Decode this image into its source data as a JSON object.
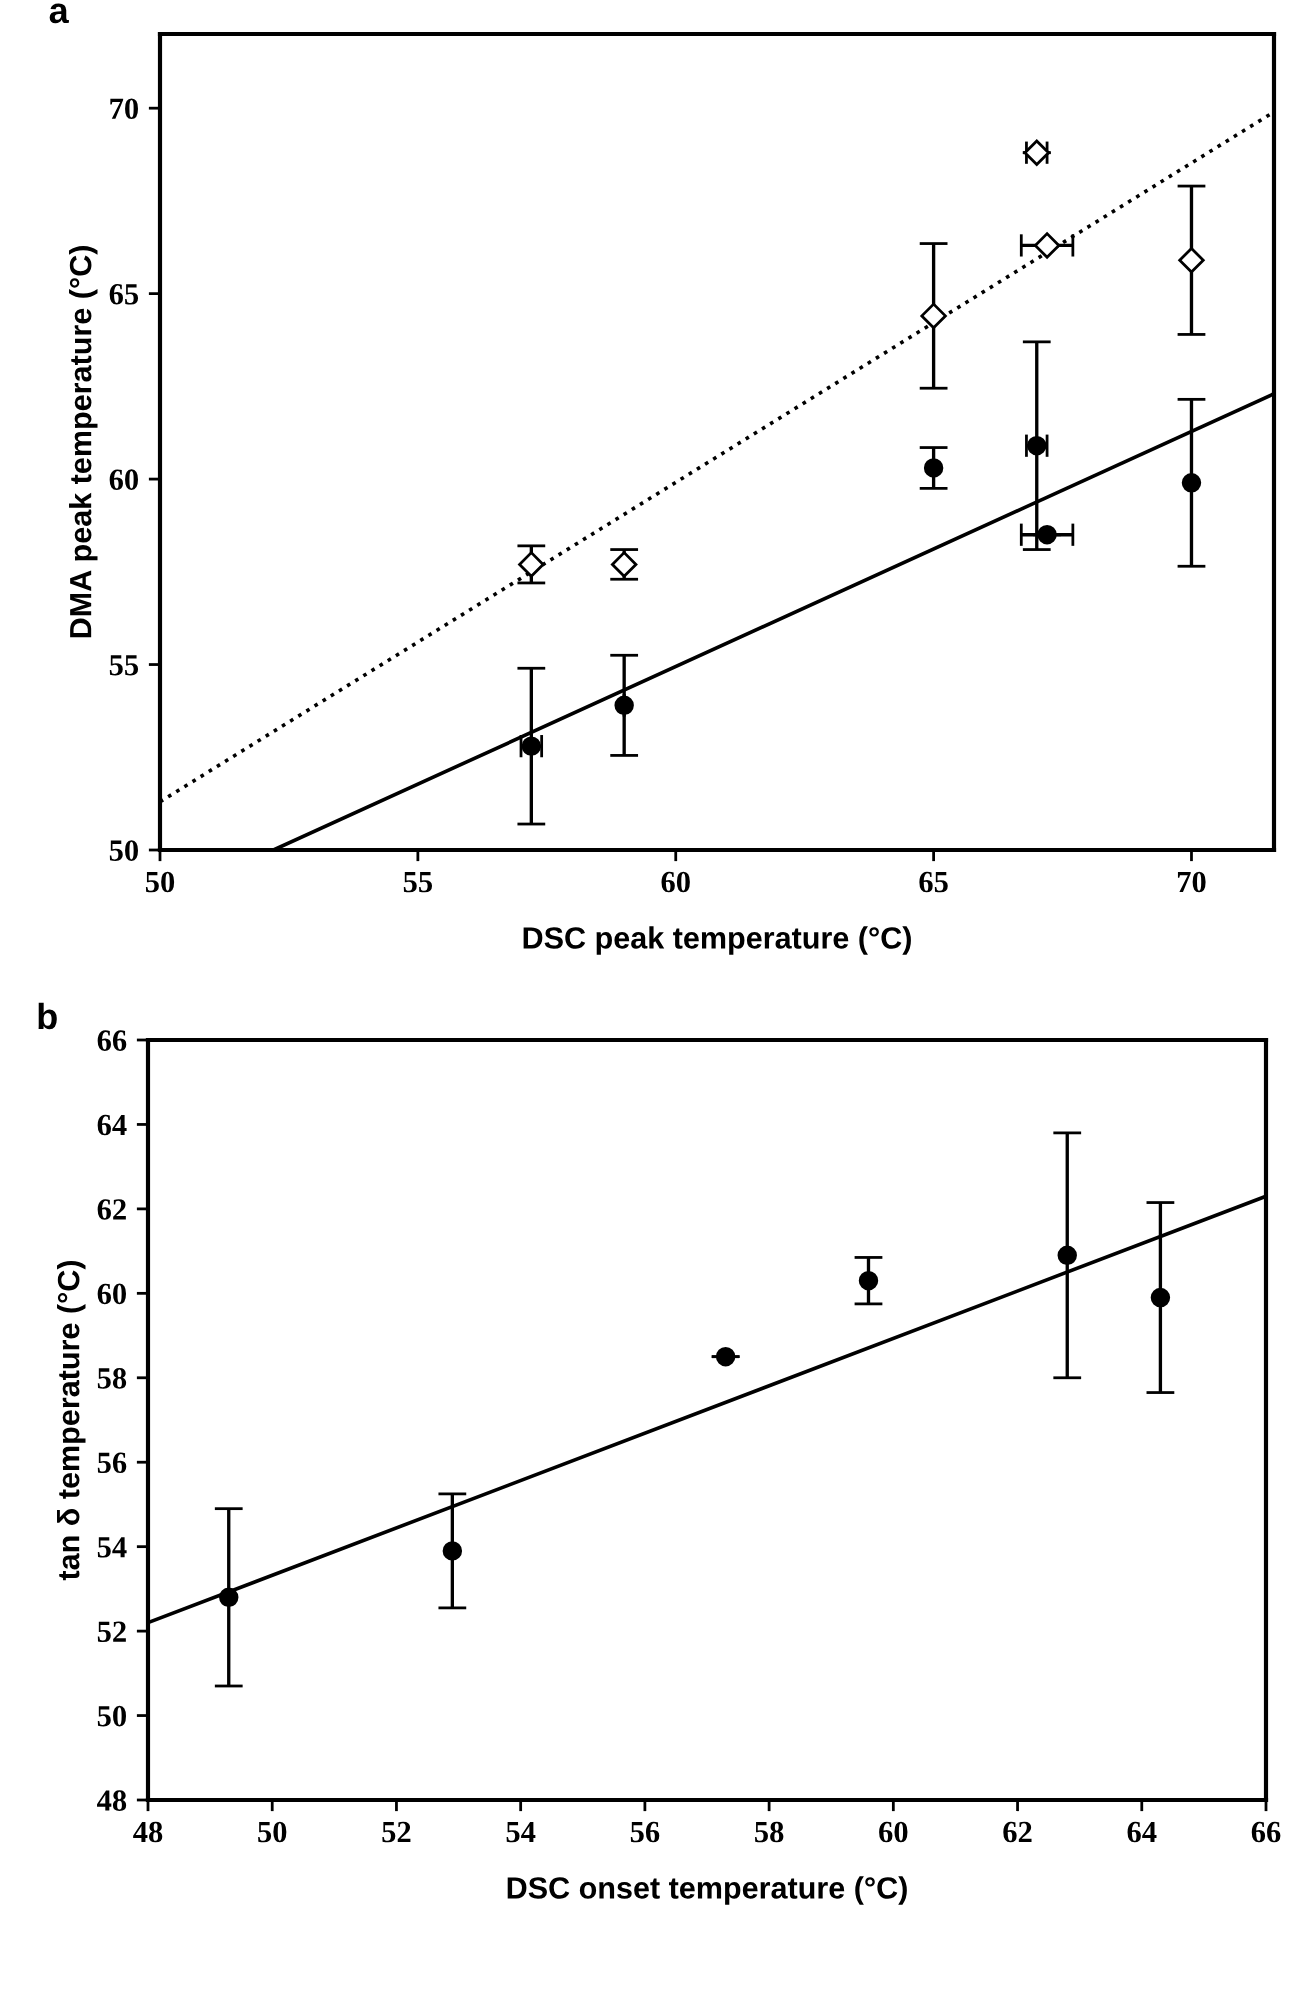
{
  "chart_data": [
    {
      "type": "scatter",
      "title": "a",
      "xlabel": "DSC peak temperature (°C)",
      "ylabel": "DMA peak temperature (°C)",
      "xlim": [
        50,
        71.6
      ],
      "ylim": [
        50,
        72
      ],
      "xticks": [
        50,
        55,
        60,
        65,
        70
      ],
      "yticks": [
        50,
        55,
        60,
        65,
        70
      ],
      "grid": false,
      "legend": false,
      "series": [
        {
          "type": "scatter",
          "marker": "circle",
          "color": "#000000",
          "x": [
            57.2,
            59,
            65,
            67,
            67.2,
            70
          ],
          "values": [
            52.8,
            53.9,
            60.3,
            60.9,
            58.5,
            59.9
          ],
          "errors": [
            2.1,
            1.35,
            0.55,
            2.8,
            null,
            2.25
          ],
          "xerrors": [
            0.2,
            null,
            null,
            0.2,
            0.5,
            null
          ]
        },
        {
          "type": "scatter",
          "marker": "diamond",
          "color": "#000000",
          "x": [
            57.2,
            59,
            65,
            67,
            67.2,
            70
          ],
          "values": [
            57.7,
            57.7,
            64.4,
            68.8,
            66.3,
            65.9
          ],
          "errors": [
            0.5,
            0.4,
            1.95,
            null,
            null,
            2.0
          ],
          "xerrors": [
            null,
            null,
            null,
            0.2,
            0.5,
            null
          ]
        },
        {
          "type": "line",
          "line_style": "solid",
          "color": "#000000",
          "x": [
            52.2,
            71.6
          ],
          "values": [
            50,
            62.3
          ]
        },
        {
          "type": "line",
          "line_style": "dotted",
          "color": "#000000",
          "x": [
            50,
            71.6
          ],
          "values": [
            51.3,
            69.9
          ]
        }
      ]
    },
    {
      "type": "scatter",
      "title": "b",
      "xlabel": "DSC onset temperature (°C)",
      "ylabel": "tan δ temperature (°C)",
      "xlim": [
        48,
        66
      ],
      "ylim": [
        48,
        66
      ],
      "xticks": [
        48,
        50,
        52,
        54,
        56,
        58,
        60,
        62,
        64,
        66
      ],
      "yticks": [
        48,
        50,
        52,
        54,
        56,
        58,
        60,
        62,
        64,
        66
      ],
      "grid": false,
      "legend": false,
      "series": [
        {
          "type": "scatter",
          "marker": "circle",
          "color": "#000000",
          "x": [
            49.3,
            52.9,
            57.3,
            59.6,
            62.8,
            64.3
          ],
          "values": [
            52.8,
            53.9,
            58.5,
            60.3,
            60.9,
            59.9
          ],
          "errors": [
            2.1,
            1.35,
            null,
            0.55,
            2.9,
            2.25
          ]
        },
        {
          "type": "line",
          "line_style": "solid",
          "color": "#000000",
          "x": [
            48,
            66
          ],
          "values": [
            52.2,
            62.3
          ]
        }
      ]
    }
  ]
}
